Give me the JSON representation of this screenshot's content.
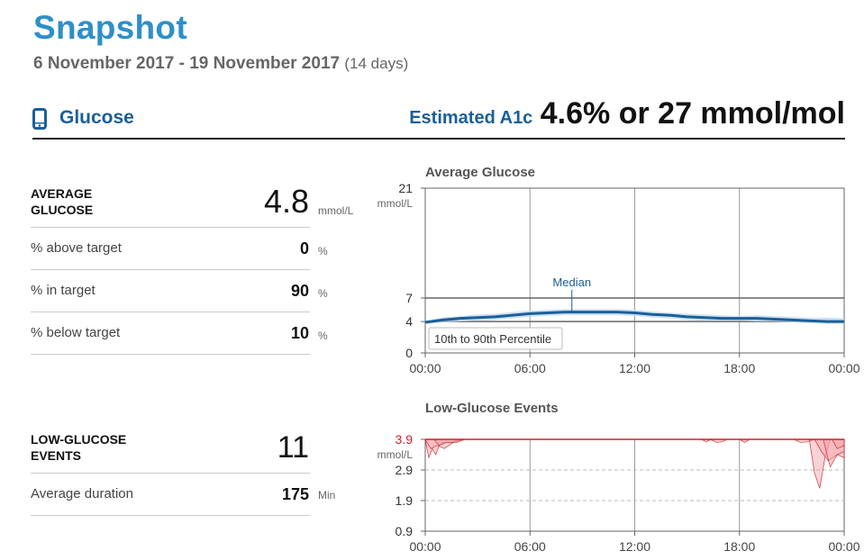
{
  "header": {
    "title": "Snapshot",
    "date_range": "6 November 2017 - 19 November 2017",
    "days": "(14 days)"
  },
  "glucose_section": {
    "icon": "phone-device-icon",
    "label": "Glucose",
    "a1c_label": "Estimated A1c",
    "a1c_value": "4.6% or 27 mmol/mol"
  },
  "stats": {
    "average_glucose": {
      "label": "AVERAGE GLUCOSE",
      "value": "4.8",
      "unit": "mmol/L"
    },
    "above_target": {
      "label": "% above target",
      "value": "0",
      "unit": "%"
    },
    "in_target": {
      "label": "% in target",
      "value": "90",
      "unit": "%"
    },
    "below_target": {
      "label": "% below target",
      "value": "10",
      "unit": "%"
    },
    "low_events": {
      "label": "LOW-GLUCOSE EVENTS",
      "value": "11"
    },
    "avg_duration": {
      "label": "Average duration",
      "value": "175",
      "unit": "Min"
    }
  },
  "colors": {
    "title": "#2f8fc9",
    "accent": "#1a5f99",
    "median_line": "#1a5f99",
    "percentile_band": "#c5d9ee",
    "low_line": "#d0202a",
    "low_fill": "#f2a0a6"
  },
  "chart_data": [
    {
      "type": "line",
      "title": "Average Glucose",
      "ylabel": "mmol/L",
      "ylim": [
        0,
        21
      ],
      "yticks": [
        "21",
        "7",
        "4",
        "0"
      ],
      "ytick_values": [
        21,
        7,
        4,
        0
      ],
      "xticks": [
        "00:00",
        "06:00",
        "12:00",
        "18:00",
        "00:00"
      ],
      "xtick_hours": [
        0,
        6,
        12,
        18,
        24
      ],
      "target_lines": [
        4,
        7
      ],
      "median_label": "Median",
      "band_label": "10th to 90th Percentile",
      "x_hours": [
        0,
        1,
        2,
        3,
        4,
        5,
        6,
        7,
        8,
        9,
        10,
        11,
        12,
        13,
        14,
        15,
        16,
        17,
        18,
        19,
        20,
        21,
        22,
        23,
        24
      ],
      "median": [
        3.9,
        4.2,
        4.4,
        4.5,
        4.6,
        4.8,
        5.0,
        5.1,
        5.2,
        5.2,
        5.2,
        5.2,
        5.1,
        4.9,
        4.8,
        4.6,
        4.5,
        4.4,
        4.4,
        4.4,
        4.3,
        4.2,
        4.1,
        4.0,
        4.0
      ],
      "p10": [
        3.7,
        3.9,
        4.0,
        4.1,
        4.2,
        4.4,
        4.6,
        4.7,
        4.8,
        4.8,
        4.8,
        4.8,
        4.7,
        4.5,
        4.4,
        4.2,
        4.1,
        4.1,
        4.1,
        4.0,
        4.0,
        3.9,
        3.8,
        3.7,
        3.7
      ],
      "p90": [
        4.1,
        4.5,
        4.7,
        4.9,
        5.0,
        5.2,
        5.4,
        5.5,
        5.6,
        5.6,
        5.6,
        5.6,
        5.5,
        5.3,
        5.1,
        5.0,
        4.9,
        4.8,
        4.7,
        4.8,
        4.7,
        4.6,
        4.5,
        4.5,
        4.4
      ]
    },
    {
      "type": "area",
      "title": "Low-Glucose Events",
      "ylabel": "mmol/L",
      "ylim": [
        0.9,
        3.9
      ],
      "yticks": [
        "3.9",
        "2.9",
        "1.9",
        "0.9"
      ],
      "ytick_values": [
        3.9,
        2.9,
        1.9,
        0.9
      ],
      "xticks": [
        "00:00",
        "06:00",
        "12:00",
        "18:00",
        "00:00"
      ],
      "xtick_hours": [
        0,
        6,
        12,
        18,
        24
      ],
      "threshold": 3.9,
      "events": [
        {
          "x": [
            0.0,
            0.2,
            0.4,
            0.6,
            0.8,
            1.0,
            1.5,
            2.0
          ],
          "y": [
            3.9,
            3.3,
            3.6,
            3.4,
            3.7,
            3.8,
            3.8,
            3.9
          ]
        },
        {
          "x": [
            0.0,
            0.3,
            0.7,
            1.1,
            1.6,
            2.2
          ],
          "y": [
            3.9,
            3.6,
            3.7,
            3.6,
            3.8,
            3.9
          ]
        },
        {
          "x": [
            0.5,
            0.8,
            1.2,
            1.8,
            2.3
          ],
          "y": [
            3.9,
            3.7,
            3.8,
            3.8,
            3.9
          ]
        },
        {
          "x": [
            15.8,
            16.1,
            16.4
          ],
          "y": [
            3.9,
            3.82,
            3.9
          ]
        },
        {
          "x": [
            16.3,
            16.7,
            17.0,
            17.3
          ],
          "y": [
            3.9,
            3.8,
            3.82,
            3.9
          ]
        },
        {
          "x": [
            18.0,
            18.3,
            18.6
          ],
          "y": [
            3.9,
            3.8,
            3.9
          ]
        },
        {
          "x": [
            21.1,
            21.5,
            21.9,
            22.3
          ],
          "y": [
            3.9,
            3.8,
            3.82,
            3.9
          ]
        },
        {
          "x": [
            22.0,
            22.3,
            22.6,
            22.9,
            23.2
          ],
          "y": [
            3.9,
            2.8,
            2.3,
            3.3,
            3.9
          ]
        },
        {
          "x": [
            22.3,
            22.7,
            23.1,
            23.6,
            24.0
          ],
          "y": [
            3.9,
            3.5,
            3.2,
            3.4,
            3.3
          ]
        },
        {
          "x": [
            22.8,
            23.2,
            23.6,
            24.0
          ],
          "y": [
            3.9,
            3.0,
            3.4,
            3.5
          ]
        },
        {
          "x": [
            23.3,
            23.6,
            24.0
          ],
          "y": [
            3.9,
            3.6,
            3.7
          ]
        }
      ]
    }
  ]
}
